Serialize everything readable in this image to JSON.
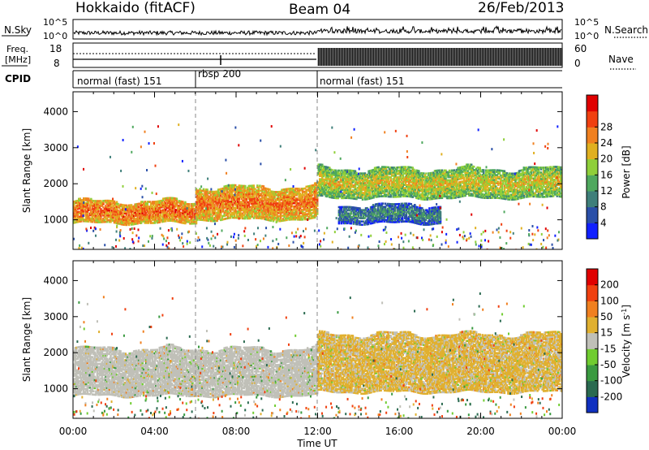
{
  "header": {
    "station": "Hokkaido (fitACF)",
    "beam": "Beam 04",
    "date": "26/Feb/2013"
  },
  "top_panels": {
    "nsky_label": "N.Sky",
    "nsearch_label": "N.Search",
    "freq_label_1": "Freq.",
    "freq_label_2": "[MHz]",
    "nave_label": "Nave",
    "cpid_label": "CPID",
    "left_ticks_sky": [
      "10^5",
      "10^0"
    ],
    "right_ticks_sky": [
      "10^5",
      "10^0"
    ],
    "left_ticks_freq": [
      "18",
      "8"
    ],
    "right_ticks_nave": [
      "60",
      "0"
    ]
  },
  "cpid_segments": [
    {
      "label": "normal (fast) 151",
      "start_hour": 0,
      "end_hour": 6
    },
    {
      "label": "rbsp 200",
      "start_hour": 6,
      "end_hour": 12
    },
    {
      "label": "normal (fast) 151",
      "start_hour": 12,
      "end_hour": 24
    }
  ],
  "axes": {
    "y_label": "Slant Range [km]",
    "y_ticks": [
      "1000",
      "2000",
      "3000",
      "4000"
    ],
    "x_label": "Time UT",
    "x_ticks": [
      "00:00",
      "04:00",
      "08:00",
      "12:00",
      "16:00",
      "20:00",
      "00:00"
    ]
  },
  "power_colorbar": {
    "label": "Power [dB]",
    "ticks": [
      "4",
      "8",
      "12",
      "16",
      "20",
      "24",
      "28"
    ],
    "colors": [
      "#1020ff",
      "#2a4fa8",
      "#3f7f7a",
      "#4fa85e",
      "#8fcf3a",
      "#e0b020",
      "#f08020",
      "#f04010",
      "#e00000"
    ]
  },
  "velocity_colorbar": {
    "label": "Velocity [m s",
    "label_sup": "-1",
    "label_tail": "]",
    "ticks": [
      "200",
      "100",
      "50",
      "15",
      "-15",
      "-50",
      "-100",
      "-200"
    ],
    "colors": [
      "#1030c0",
      "#2a6a50",
      "#3a9a40",
      "#70cc30",
      "#c0c0b8",
      "#e0b030",
      "#f08020",
      "#f04010",
      "#e00000"
    ]
  },
  "chart_data": [
    {
      "type": "heatmap",
      "title": "Power",
      "xlabel": "Time UT",
      "ylabel": "Slant Range [km]",
      "xlim": [
        0,
        24
      ],
      "ylim": [
        180,
        4550
      ],
      "x_ticks": [
        "00:00",
        "04:00",
        "08:00",
        "12:00",
        "16:00",
        "20:00",
        "00:00"
      ],
      "y_ticks": [
        1000,
        2000,
        3000,
        4000
      ],
      "colorbar_label": "Power [dB]",
      "colorbar_range": [
        0,
        30
      ],
      "features": [
        {
          "name": "main band",
          "start_hour": 0,
          "end_hour": 6,
          "range_km": [
            900,
            1500
          ],
          "power_db": 28
        },
        {
          "name": "main band",
          "start_hour": 6,
          "end_hour": 12,
          "range_km": [
            1000,
            1900
          ],
          "power_db": 27
        },
        {
          "name": "upper band",
          "start_hour": 12,
          "end_hour": 24,
          "range_km": [
            1600,
            2400
          ],
          "power_db": 22
        },
        {
          "name": "lower band",
          "start_hour": 13,
          "end_hour": 18,
          "range_km": [
            900,
            1400
          ],
          "power_db": 14
        }
      ]
    },
    {
      "type": "heatmap",
      "title": "Velocity",
      "xlabel": "Time UT",
      "ylabel": "Slant Range [km]",
      "xlim": [
        0,
        24
      ],
      "ylim": [
        180,
        4550
      ],
      "x_ticks": [
        "00:00",
        "04:00",
        "08:00",
        "12:00",
        "16:00",
        "20:00",
        "00:00"
      ],
      "y_ticks": [
        1000,
        2000,
        3000,
        4000
      ],
      "colorbar_label": "Velocity [m s-1]",
      "colorbar_ticks": [
        200,
        100,
        50,
        15,
        -15,
        -50,
        -100,
        -200
      ],
      "features": [
        {
          "name": "ground scatter",
          "start_hour": 0,
          "end_hour": 12,
          "range_km": [
            800,
            2100
          ],
          "velocity_ms": 0
        },
        {
          "name": "scatter",
          "start_hour": 12,
          "end_hour": 24,
          "range_km": [
            900,
            2500
          ],
          "velocity_ms": -20
        }
      ]
    }
  ]
}
